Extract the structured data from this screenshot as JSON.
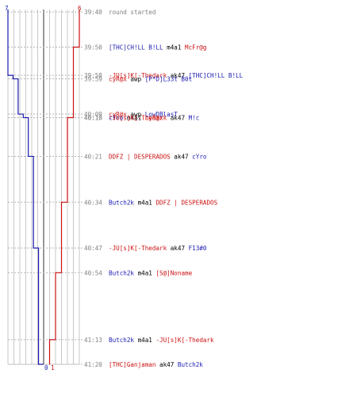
{
  "chart_data": {
    "type": "line",
    "title": "",
    "xlabel": "",
    "ylabel": "",
    "start_counts": {
      "blue": "7",
      "red": "6"
    },
    "end_counts": {
      "blue": "0",
      "red": "1"
    },
    "colors": {
      "blue": "#1a1ab0",
      "red": "#cc1111",
      "text": "#000000",
      "gray_text": "#808080",
      "grid": "#c8c8c8",
      "dash": "#b4b4b4",
      "center": "#606060"
    },
    "events": [
      {
        "time": "39:40",
        "parts": [
          {
            "text": "round started",
            "color": "gray"
          }
        ]
      },
      {
        "time": "39:50",
        "parts": [
          {
            "text": "[THC]CH!LL B!LL",
            "color": "blue"
          },
          {
            "text": " m4a1 ",
            "color": "black"
          },
          {
            "text": "McFr@g",
            "color": "red"
          }
        ]
      },
      {
        "time": "39:58",
        "parts": [
          {
            "text": "-JU[s]K[-Thedark",
            "color": "red"
          },
          {
            "text": " ak47 ",
            "color": "black"
          },
          {
            "text": "[THC]CH!LL B!LL",
            "color": "blue"
          }
        ]
      },
      {
        "time": "39:59",
        "parts": [
          {
            "text": "cyR@x",
            "color": "red"
          },
          {
            "text": " awp ",
            "color": "black"
          },
          {
            "text": "[P*D]L33t B0t",
            "color": "blue"
          }
        ]
      },
      {
        "time": "40:09",
        "parts": [
          {
            "text": "cyR@x",
            "color": "red"
          },
          {
            "text": " awp ",
            "color": "black"
          },
          {
            "text": "LowDBlasT",
            "color": "blue"
          }
        ]
      },
      {
        "time": "40:10",
        "parts": [
          {
            "text": "cYro",
            "color": "blue"
          },
          {
            "text": " m4a1 ",
            "color": "black"
          },
          {
            "text": "cyR@x",
            "color": "red"
          }
        ]
      },
      {
        "time": "40:10",
        "parts": [
          {
            "text": "-JU[s]K[-Thedark",
            "color": "red"
          },
          {
            "text": " ak47 ",
            "color": "black"
          },
          {
            "text": "M!c",
            "color": "blue"
          }
        ]
      },
      {
        "time": "40:21",
        "parts": [
          {
            "text": "DDFZ | DESPERADOS",
            "color": "red"
          },
          {
            "text": " ak47 ",
            "color": "black"
          },
          {
            "text": "cYro",
            "color": "blue"
          }
        ]
      },
      {
        "time": "40:34",
        "parts": [
          {
            "text": "Butch2k",
            "color": "blue"
          },
          {
            "text": " m4a1 ",
            "color": "black"
          },
          {
            "text": "DDFZ | DESPERADOS",
            "color": "red"
          }
        ]
      },
      {
        "time": "40:47",
        "parts": [
          {
            "text": "-JU[s]K[-Thedark",
            "color": "red"
          },
          {
            "text": " ak47 ",
            "color": "black"
          },
          {
            "text": "F13#0",
            "color": "blue"
          }
        ]
      },
      {
        "time": "40:54",
        "parts": [
          {
            "text": "Butch2k",
            "color": "blue"
          },
          {
            "text": " m4a1 ",
            "color": "black"
          },
          {
            "text": "[S@]Noname",
            "color": "red"
          }
        ]
      },
      {
        "time": "41:13",
        "parts": [
          {
            "text": "Butch2k",
            "color": "blue"
          },
          {
            "text": " m4a1 ",
            "color": "black"
          },
          {
            "text": "-JU[s]K[-Thedark",
            "color": "red"
          }
        ]
      },
      {
        "time": "41:20",
        "parts": [
          {
            "text": "[THC]Ganjaman",
            "color": "red"
          },
          {
            "text": " ak47 ",
            "color": "black"
          },
          {
            "text": "Butch2k",
            "color": "blue"
          }
        ]
      }
    ]
  }
}
